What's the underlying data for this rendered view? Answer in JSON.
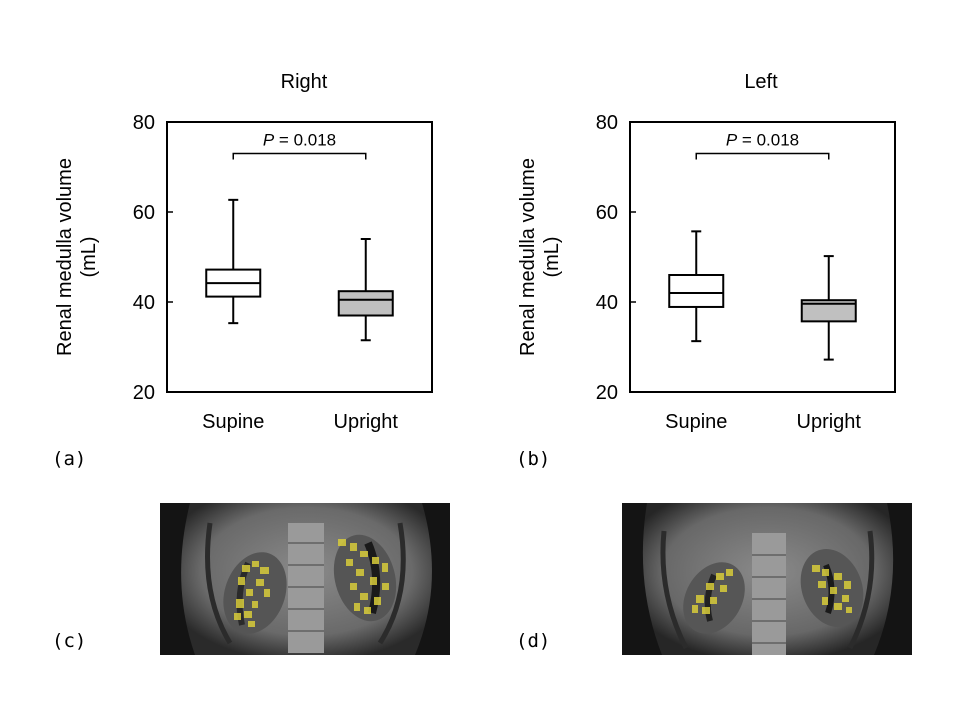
{
  "panel_labels": [
    "(a)",
    "(b)",
    "(c)",
    "(d)"
  ],
  "chart_data": [
    {
      "type": "box",
      "title": "Right",
      "ylabel": "Renal medulla volume\n(mL)",
      "ylim": [
        20,
        80
      ],
      "yticks": [
        20,
        40,
        60,
        80
      ],
      "categories": [
        "Supine",
        "Upright"
      ],
      "boxes": [
        {
          "min": 35.3,
          "q1": 41.2,
          "median": 44.2,
          "q3": 47.2,
          "max": 62.7,
          "fill": "#ffffff"
        },
        {
          "min": 31.5,
          "q1": 37.0,
          "median": 40.5,
          "q3": 42.4,
          "max": 54.0,
          "fill": "#c0c0c0"
        }
      ],
      "annotation": {
        "p_label": "P",
        "p_text": " = 0.018",
        "y": 73
      }
    },
    {
      "type": "box",
      "title": "Left",
      "ylabel": "Renal medulla volume\n(mL)",
      "ylim": [
        20,
        80
      ],
      "yticks": [
        20,
        40,
        60,
        80
      ],
      "categories": [
        "Supine",
        "Upright"
      ],
      "boxes": [
        {
          "min": 31.3,
          "q1": 38.9,
          "median": 42.0,
          "q3": 46.0,
          "max": 55.7,
          "fill": "#ffffff"
        },
        {
          "min": 27.2,
          "q1": 35.7,
          "median": 39.6,
          "q3": 40.4,
          "max": 50.2,
          "fill": "#c0c0c0"
        }
      ],
      "annotation": {
        "p_label": "P",
        "p_text": " = 0.018",
        "y": 73
      }
    }
  ],
  "colors": {
    "overlay": "#d8cc3a",
    "box_gray": "#c0c0c0"
  }
}
